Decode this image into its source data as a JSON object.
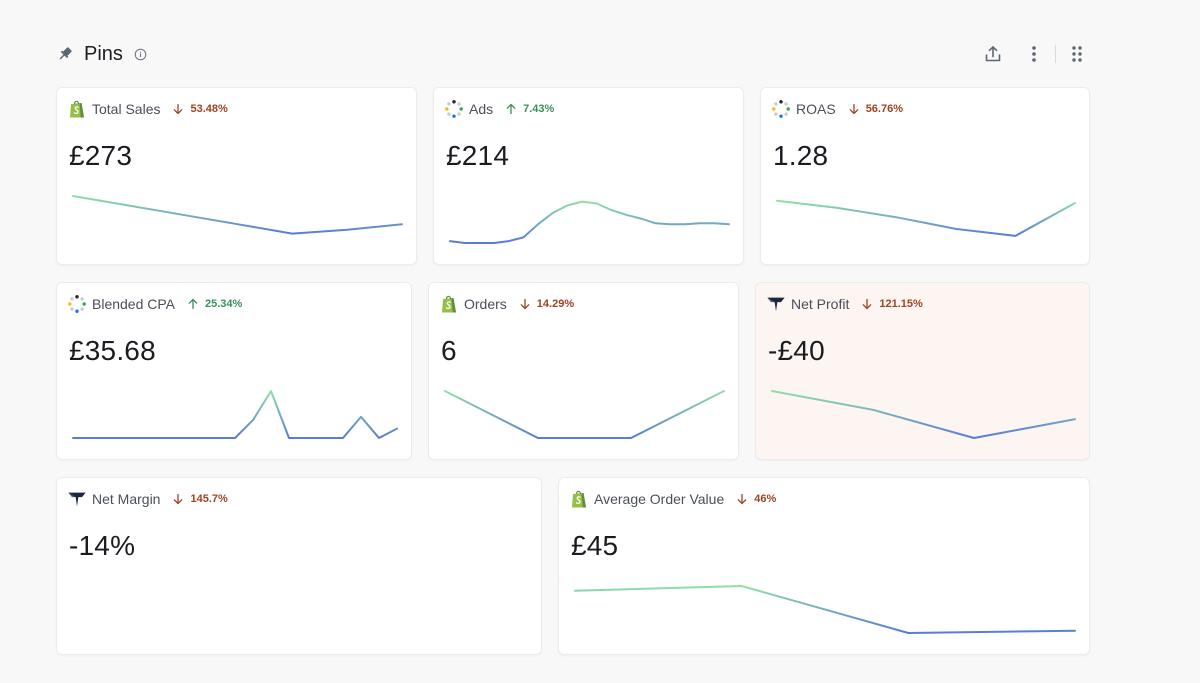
{
  "header": {
    "title": "Pins"
  },
  "colors": {
    "spark_start": "#92dfa7",
    "spark_end": "#5a7bd6",
    "delta_down": "#9c4423",
    "delta_up": "#3c8f5c"
  },
  "cards": [
    {
      "id": "total-sales",
      "name": "Total Sales",
      "source_icon": "shopify-icon",
      "direction": "down",
      "delta": "53.48%",
      "value": "£273",
      "spark": [
        0.0,
        0.2,
        0.4,
        0.6,
        0.8,
        0.72,
        0.6
      ]
    },
    {
      "id": "ads",
      "name": "Ads",
      "source_icon": "ads-sources-icon",
      "direction": "up",
      "delta": "7.43%",
      "value": "£214",
      "spark": [
        0.96,
        1.0,
        1.0,
        1.0,
        0.96,
        0.88,
        0.6,
        0.36,
        0.2,
        0.12,
        0.16,
        0.3,
        0.4,
        0.48,
        0.58,
        0.6,
        0.6,
        0.58,
        0.58,
        0.6
      ]
    },
    {
      "id": "roas",
      "name": "ROAS",
      "source_icon": "ads-sources-icon",
      "direction": "down",
      "delta": "56.76%",
      "value": "1.28",
      "spark": [
        0.1,
        0.25,
        0.45,
        0.7,
        0.85,
        0.15
      ]
    },
    {
      "id": "blended-cpa",
      "name": "Blended CPA",
      "source_icon": "ads-sources-icon",
      "direction": "up",
      "delta": "25.34%",
      "value": "£35.68",
      "spark": [
        1,
        1,
        1,
        1,
        1,
        1,
        1,
        1,
        1,
        1,
        0.62,
        0.0,
        1,
        1,
        1,
        1,
        0.55,
        1,
        0.8
      ]
    },
    {
      "id": "orders",
      "name": "Orders",
      "source_icon": "shopify-icon",
      "direction": "down",
      "delta": "14.29%",
      "value": "6",
      "spark": [
        0.0,
        1.0,
        1.0,
        0.0
      ]
    },
    {
      "id": "net-profit",
      "name": "Net Profit",
      "source_icon": "triple-whale-icon",
      "direction": "down",
      "delta": "121.15%",
      "value": "-£40",
      "spark": [
        0.0,
        0.4,
        1.0,
        0.6
      ]
    },
    {
      "id": "net-margin",
      "name": "Net Margin",
      "source_icon": "triple-whale-icon",
      "direction": "down",
      "delta": "145.7%",
      "value": "-14%",
      "spark": []
    },
    {
      "id": "average-order-value",
      "name": "Average Order Value",
      "source_icon": "shopify-icon",
      "direction": "down",
      "delta": "46%",
      "value": "£45",
      "spark": [
        0.1,
        0.0,
        1.0,
        0.95
      ]
    }
  ]
}
